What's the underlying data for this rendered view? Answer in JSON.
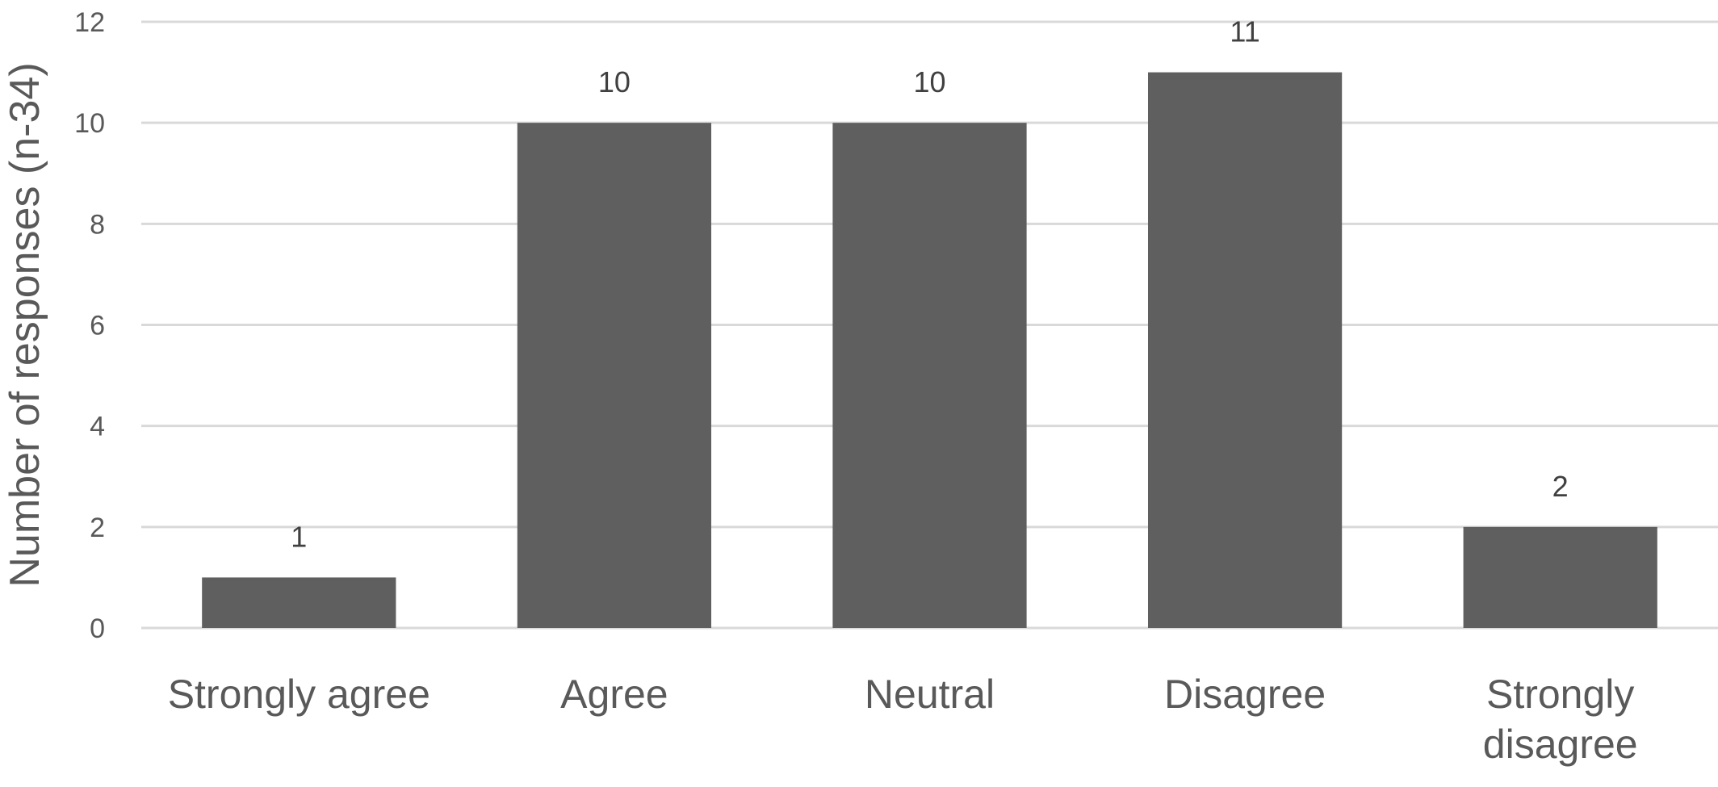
{
  "chart_data": {
    "type": "bar",
    "title": "",
    "xlabel": "",
    "ylabel": "Number of responses (n-34)",
    "categories": [
      "Strongly agree",
      "Agree",
      "Neutral",
      "Disagree",
      "Strongly disagree"
    ],
    "values": [
      1,
      10,
      10,
      11,
      2
    ],
    "data_labels": [
      "1",
      "10",
      "10",
      "11",
      "2"
    ],
    "ylim": [
      0,
      12
    ],
    "yticks": [
      0,
      2,
      4,
      6,
      8,
      10,
      12
    ],
    "grid": true,
    "legend": "none",
    "colors": {
      "bar": "#5f5f5f",
      "grid": "#d9d9d9",
      "axis": "#d9d9d9",
      "text": "#595959"
    }
  }
}
